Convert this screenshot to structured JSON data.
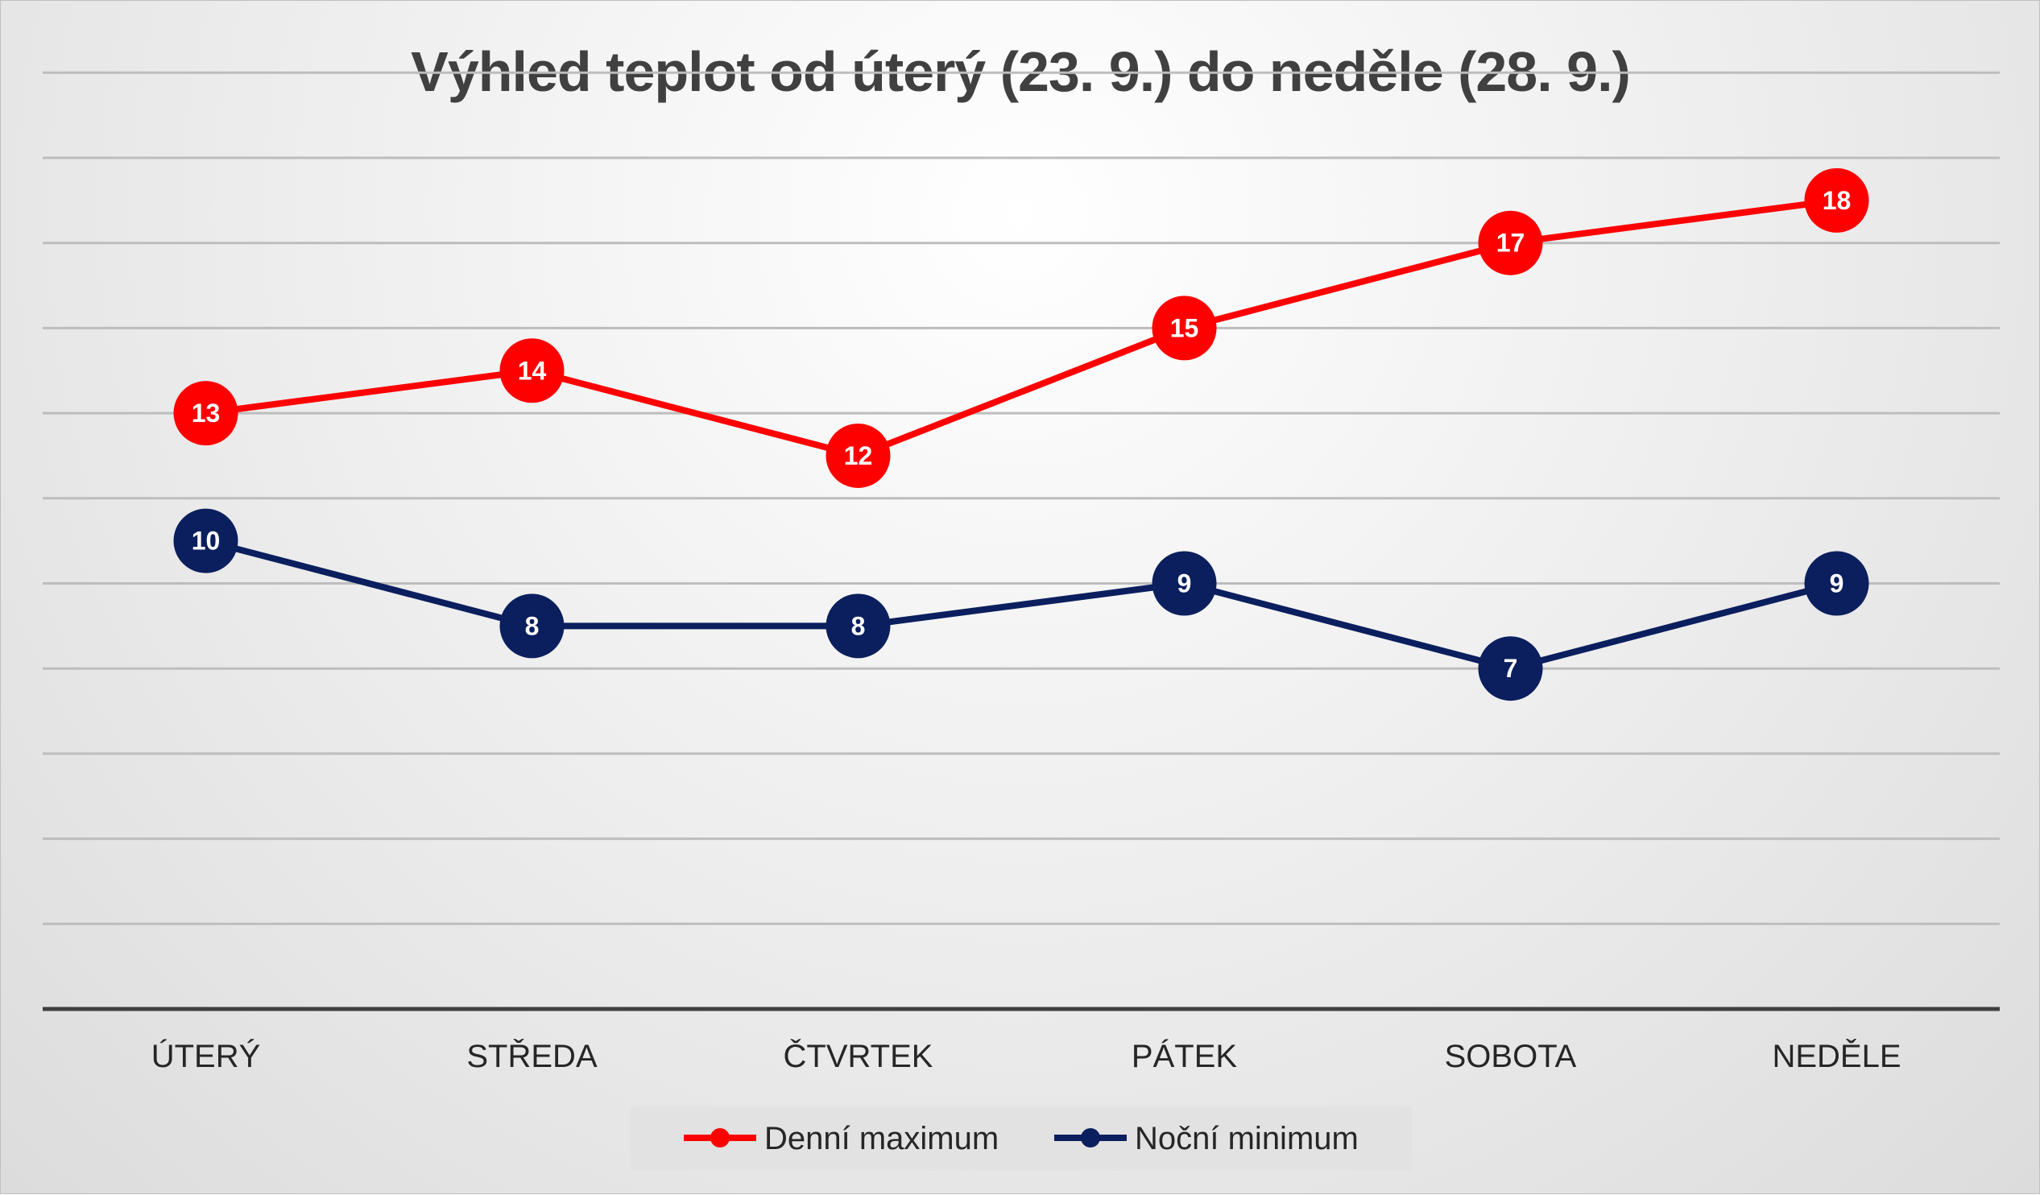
{
  "chart_data": {
    "type": "line",
    "title": "Výhled teplot od úterý (23. 9.) do neděle (28. 9.)",
    "categories": [
      "ÚTERÝ",
      "STŘEDA",
      "ČTVRTEK",
      "PÁTEK",
      "SOBOTA",
      "NEDĚLE"
    ],
    "series": [
      {
        "name": "Denní maximum",
        "values": [
          13,
          14,
          12,
          15,
          17,
          18
        ],
        "color": "#ff0000"
      },
      {
        "name": "Noční minimum",
        "values": [
          10,
          8,
          8,
          9,
          7,
          9
        ],
        "color": "#0b1f5e"
      }
    ],
    "ylim": [
      -1,
      19
    ],
    "grid": true,
    "legend": "bottom",
    "colors": {
      "axis": "#404040",
      "grid": "#bdbdbd",
      "label_text": "#ffffff"
    }
  }
}
